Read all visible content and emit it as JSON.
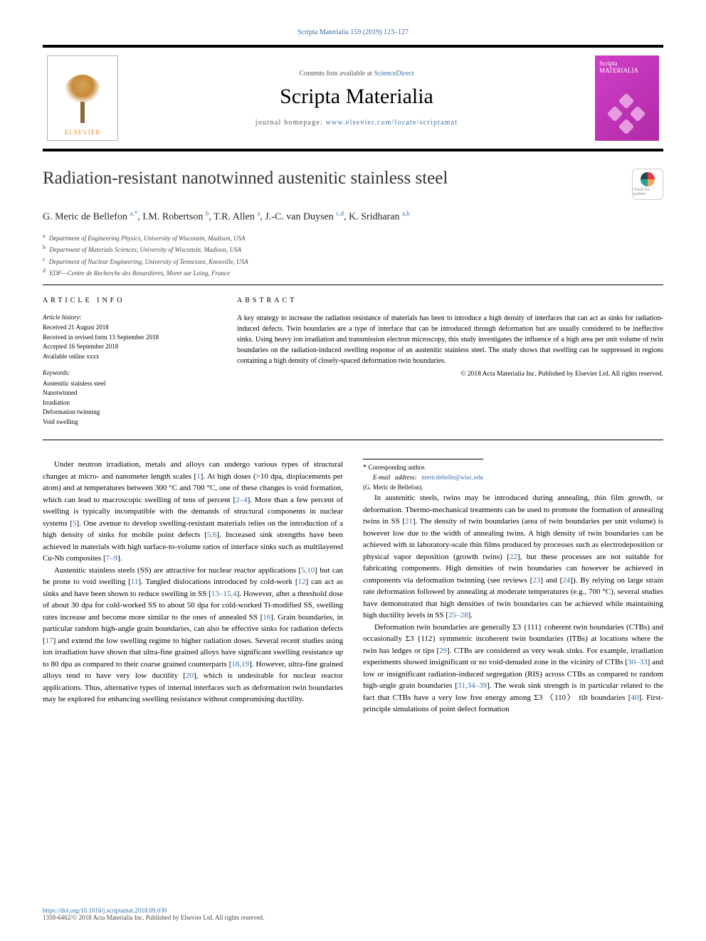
{
  "citation": "Scripta Materialia 159 (2019) 123–127",
  "header": {
    "contents_text": "Contents lists available at ",
    "contents_link": "ScienceDirect",
    "journal": "Scripta Materialia",
    "homepage_label": "journal homepage: ",
    "homepage_url": "www.elsevier.com/locate/scriptamat",
    "publisher_logo": "ELSEVIER",
    "cover_title": "Scripta MATERIALIA"
  },
  "title": "Radiation-resistant nanotwinned austenitic stainless steel",
  "crossmark": "Check for updates",
  "authors_html": "G. Meric de Bellefon <sup><a>a,</a>*</sup>, I.M. Robertson <sup><a>b</a></sup>, T.R. Allen <sup><a>a</a></sup>, J.-C. van Duysen <sup><a>c,d</a></sup>, K. Sridharan <sup><a>a,b</a></sup>",
  "affiliations": [
    {
      "sup": "a",
      "text": "Department of Engineering Physics, University of Wisconsin, Madison, USA"
    },
    {
      "sup": "b",
      "text": "Department of Materials Sciences, University of Wisconsin, Madison, USA"
    },
    {
      "sup": "c",
      "text": "Department of Nuclear Engineering, University of Tennessee, Knoxville, USA"
    },
    {
      "sup": "d",
      "text": "EDF—Centre de Recherche des Renardieres, Moret sur Loing, France"
    }
  ],
  "info": {
    "head": "ARTICLE INFO",
    "history_head": "Article history:",
    "history": [
      "Received 21 August 2018",
      "Received in revised form 13 September 2018",
      "Accepted 16 September 2018",
      "Available online xxxx"
    ],
    "keywords_head": "Keywords:",
    "keywords": [
      "Austenitic stainless steel",
      "Nanotwinned",
      "Irradiation",
      "Deformation twinning",
      "Void swelling"
    ]
  },
  "abstract": {
    "head": "ABSTRACT",
    "text": "A key strategy to increase the radiation resistance of materials has been to introduce a high density of interfaces that can act as sinks for radiation-induced defects. Twin boundaries are a type of interface that can be introduced through deformation but are usually considered to be ineffective sinks. Using heavy ion irradiation and transmission electron microscopy, this study investigates the influence of a high area per unit volume of twin boundaries on the radiation-induced swelling response of an austenitic stainless steel. The study shows that swelling can be suppressed in regions containing a high density of closely-spaced deformation twin boundaries.",
    "copyright": "© 2018 Acta Materialia Inc. Published by Elsevier Ltd. All rights reserved."
  },
  "body": [
    "Under neutron irradiation, metals and alloys can undergo various types of structural changes at micro- and nanometer length scales [<a>1</a>]. At high doses (>10 dpa, displacements per atom) and at temperatures between 300 °C and 700 °C, one of these changes is void formation, which can lead to macroscopic swelling of tens of percent [<a>2–4</a>]. More than a few percent of swelling is typically incompatible with the demands of structural components in nuclear systems [<a>5</a>]. One avenue to develop swelling-resistant materials relies on the introduction of a high density of sinks for mobile point defects [<a>5,6</a>]. Increased sink strengths have been achieved in materials with high surface-to-volume ratios of interface sinks such as multilayered Cu-Nb composites [<a>7–9</a>].",
    "Austenitic stainless steels (SS) are attractive for nuclear reactor applications [<a>5,10</a>] but can be prone to void swelling [<a>11</a>]. Tangled dislocations introduced by cold-work [<a>12</a>] can act as sinks and have been shown to reduce swelling in SS [<a>13–15,4</a>]. However, after a threshold dose of about 30 dpa for cold-worked SS to about 50 dpa for cold-worked Ti-modified SS, swelling rates increase and become more similar to the ones of annealed SS [<a>16</a>]. Grain boundaries, in particular random high-angle grain boundaries, can also be effective sinks for radiation defects [<a>17</a>] and extend the low swelling regime to higher radiation doses. Several recent studies using ion irradiation have shown that ultra-fine grained alloys have significant swelling resistance up to 80 dpa as compared to their coarse grained counterparts [<a>18,19</a>]. However, ultra-fine grained alloys tend to have very low ductility [<a>20</a>], which is undesirable for nuclear reactor applications. Thus, alternative types of internal interfaces such as deformation twin boundaries may be explored for enhancing swelling resistance without compromising ductility.",
    "In austenitic steels, twins may be introduced during annealing, thin film growth, or deformation. Thermo-mechanical treatments can be used to promote the formation of annealing twins in SS [<a>21</a>]. The density of twin boundaries (area of twin boundaries per unit volume) is however low due to the width of annealing twins. A high density of twin boundaries can be achieved with in laboratory-scale thin films produced by processes such as electrodeposition or physical vapor deposition (growth twins) [<a>22</a>], but these processes are not suitable for fabricating components. High densities of twin boundaries can however be achieved in components via deformation twinning (see reviews [<a>23</a>] and [<a>24</a>]). By relying on large strain rate deformation followed by annealing at moderate temperatures (e.g., 700 °C), several studies have demonstrated that high densities of twin boundaries can be achieved while maintaining high ductility levels in SS [<a>25–28</a>].",
    "Deformation twin boundaries are generally Σ3 {111} coherent twin boundaries (CTBs) and occasionally Σ3 {112} symmetric incoherent twin boundaries (ITBs) at locations where the twin has ledges or tips [<a>29</a>]. CTBs are considered as very weak sinks. For example, irradiation experiments showed insignificant or no void-denuded zone in the vicinity of CTBs [<a>30–33</a>] and low or insignificant radiation-induced segregation (RIS) across CTBs as compared to random high-angle grain boundaries [<a>31,34–39</a>]. The weak sink strength is in particular related to the fact that CTBs have a very low free energy among Σ3 〈110〉 tilt boundaries [<a>40</a>]. First-principle simulations of point defect formation"
  ],
  "corresponding": {
    "label": "Corresponding author.",
    "email_label": "E-mail address:",
    "email": "mericdebelle@wisc.edu",
    "name": "(G. Meric de Bellefon)."
  },
  "footer": {
    "doi": "https://doi.org/10.1016/j.scriptamat.2018.09.030",
    "copyright": "1359-6462/© 2018 Acta Materialia Inc. Published by Elsevier Ltd. All rights reserved."
  },
  "colors": {
    "link": "#3a6ea5",
    "rule": "#000000",
    "cover_bg": "#c63bbd",
    "elsevier": "#e98a2b"
  }
}
